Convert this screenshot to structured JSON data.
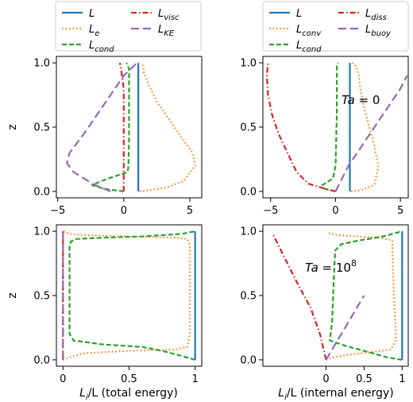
{
  "legends": [
    {
      "entries": [
        {
          "base": "L",
          "sub": "",
          "color": "#1f77b4",
          "dash": "solid"
        },
        {
          "base": "L",
          "sub": "e",
          "color": "#ff7f0e",
          "dash": "dotted"
        },
        {
          "base": "L",
          "sub": "cond",
          "color": "#2ca02c",
          "dash": "dashed"
        },
        {
          "base": "L",
          "sub": "visc",
          "color": "#d62728",
          "dash": "dashdot"
        },
        {
          "base": "L",
          "sub": "KE",
          "color": "#9467bd",
          "dash": "longdash"
        }
      ]
    },
    {
      "entries": [
        {
          "base": "L",
          "sub": "",
          "color": "#1f77b4",
          "dash": "solid"
        },
        {
          "base": "L",
          "sub": "conv",
          "color": "#ff7f0e",
          "dash": "dotted"
        },
        {
          "base": "L",
          "sub": "cond",
          "color": "#2ca02c",
          "dash": "dashed"
        },
        {
          "base": "L",
          "sub": "diss",
          "color": "#d62728",
          "dash": "dashdot"
        },
        {
          "base": "L",
          "sub": "buoy",
          "color": "#9467bd",
          "dash": "longdash"
        }
      ]
    }
  ],
  "ylabel": "z",
  "xlabel_left": {
    "base": "L",
    "sub": "i",
    "rest": "/L (total energy)"
  },
  "xlabel_right": {
    "base": "L",
    "sub": "i",
    "rest": "/L (internal energy)"
  },
  "annotation_top": {
    "prefix": "Ta",
    "eq": " = ",
    "value": "0"
  },
  "annotation_bottom": {
    "prefix": "Ta",
    "eq": " = ",
    "value": "10",
    "sup": "8"
  },
  "colors": {
    "L": "#1f77b4",
    "e": "#ff7f0e",
    "cond": "#2ca02c",
    "visc": "#d62728",
    "ke": "#9467bd"
  },
  "chart_data": [
    {
      "type": "line",
      "panel": "top-left",
      "xlim": [
        -5.1,
        5.9
      ],
      "ylim": [
        -0.05,
        1.05
      ],
      "xticks": [
        -5,
        0,
        5
      ],
      "yticks": [
        0.0,
        0.5,
        1.0
      ],
      "series": [
        {
          "key": "L",
          "x": [
            1.1,
            1.1,
            1.1,
            1.1,
            1.1,
            1.1
          ],
          "y": [
            0.0,
            0.2,
            0.4,
            0.6,
            0.8,
            1.0
          ]
        },
        {
          "key": "e",
          "x": [
            1.2,
            2.0,
            3.2,
            4.5,
            5.4,
            5.2,
            4.5,
            3.5,
            2.5,
            1.8,
            1.5,
            1.5,
            1.3
          ],
          "y": [
            0.0,
            0.01,
            0.03,
            0.08,
            0.2,
            0.3,
            0.4,
            0.55,
            0.7,
            0.85,
            0.93,
            0.97,
            1.0
          ]
        },
        {
          "key": "cond",
          "x": [
            0.0,
            -1.5,
            -2.4,
            -1.2,
            0.3,
            0.35,
            0.4,
            0.4,
            0.4,
            0.4,
            0.3,
            0.2
          ],
          "y": [
            0.0,
            0.02,
            0.05,
            0.1,
            0.15,
            0.2,
            0.4,
            0.6,
            0.8,
            0.95,
            0.98,
            1.0
          ]
        },
        {
          "key": "visc",
          "x": [
            0.0,
            0.0,
            0.0,
            0.0,
            0.0,
            -0.2,
            -0.3
          ],
          "y": [
            0.0,
            0.2,
            0.4,
            0.6,
            0.8,
            0.95,
            1.0
          ]
        },
        {
          "key": "ke",
          "x": [
            -1.0,
            -2.2,
            -3.8,
            -4.3,
            -4.1,
            -3.0,
            -2.0,
            -1.0,
            0.0,
            1.0
          ],
          "y": [
            0.0,
            0.05,
            0.15,
            0.22,
            0.3,
            0.45,
            0.6,
            0.75,
            0.9,
            1.0
          ]
        }
      ]
    },
    {
      "type": "line",
      "panel": "top-right",
      "xlim": [
        -5.6,
        5.6
      ],
      "ylim": [
        -0.05,
        1.05
      ],
      "xticks": [
        -5,
        0,
        5
      ],
      "yticks": [
        0.0,
        0.5,
        1.0
      ],
      "series": [
        {
          "key": "L",
          "x": [
            1.1,
            1.1,
            1.1,
            1.1,
            1.1,
            1.1
          ],
          "y": [
            0.0,
            0.2,
            0.4,
            0.6,
            0.8,
            1.0
          ]
        },
        {
          "key": "e",
          "x": [
            1.2,
            2.0,
            3.0,
            3.3,
            3.0,
            2.6,
            2.2,
            1.9,
            1.8,
            1.6,
            1.3
          ],
          "y": [
            0.0,
            0.01,
            0.05,
            0.2,
            0.35,
            0.5,
            0.65,
            0.8,
            0.9,
            0.97,
            1.0
          ]
        },
        {
          "key": "cond",
          "x": [
            0.0,
            -0.8,
            -1.0,
            -0.2,
            0.0,
            0.05,
            0.1,
            0.1,
            0.1,
            0.1,
            0.2
          ],
          "y": [
            0.0,
            0.02,
            0.05,
            0.1,
            0.2,
            0.4,
            0.6,
            0.8,
            0.9,
            0.97,
            1.0
          ]
        },
        {
          "key": "visc",
          "x": [
            0.0,
            -0.8,
            -2.1,
            -3.0,
            -3.7,
            -4.4,
            -4.9,
            -5.2,
            -5.3,
            -5.2
          ],
          "y": [
            0.0,
            0.02,
            0.06,
            0.15,
            0.3,
            0.45,
            0.6,
            0.75,
            0.9,
            1.0
          ]
        },
        {
          "key": "ke",
          "x": [
            0.0,
            1.0,
            2.0,
            3.0,
            4.0,
            5.0,
            5.5
          ],
          "y": [
            0.0,
            0.2,
            0.35,
            0.5,
            0.65,
            0.8,
            0.9
          ]
        }
      ]
    },
    {
      "type": "line",
      "panel": "bottom-left",
      "xlim": [
        -0.05,
        1.05
      ],
      "ylim": [
        -0.05,
        1.05
      ],
      "xticks": [
        0.0,
        0.5,
        1.0
      ],
      "yticks": [
        0.0,
        0.5,
        1.0
      ],
      "series": [
        {
          "key": "L",
          "x": [
            1.0,
            1.0,
            1.0,
            1.0,
            1.0,
            1.0
          ],
          "y": [
            0.0,
            0.2,
            0.4,
            0.6,
            0.8,
            1.0
          ]
        },
        {
          "key": "e",
          "x": [
            0.0,
            0.05,
            0.15,
            0.5,
            0.85,
            0.94,
            0.96,
            0.96,
            0.96,
            0.96,
            0.94,
            0.85,
            0.5,
            0.15,
            0.05,
            0.0
          ],
          "y": [
            0.0,
            0.02,
            0.05,
            0.07,
            0.08,
            0.1,
            0.2,
            0.5,
            0.8,
            0.9,
            0.94,
            0.95,
            0.96,
            0.97,
            0.98,
            1.0
          ]
        },
        {
          "key": "cond",
          "x": [
            1.0,
            0.9,
            0.75,
            0.6,
            0.3,
            0.08,
            0.05,
            0.05,
            0.05,
            0.05,
            0.06,
            0.1,
            0.3,
            0.6,
            0.9,
            1.0
          ],
          "y": [
            0.0,
            0.03,
            0.07,
            0.1,
            0.12,
            0.15,
            0.2,
            0.5,
            0.8,
            0.88,
            0.92,
            0.94,
            0.95,
            0.96,
            0.98,
            1.0
          ]
        },
        {
          "key": "visc",
          "x": [
            0.0,
            0.0,
            0.0,
            0.0,
            0.0,
            0.0
          ],
          "y": [
            0.0,
            0.2,
            0.4,
            0.6,
            0.8,
            1.0
          ]
        },
        {
          "key": "ke",
          "x": [
            0.0,
            0.0,
            0.0,
            0.0,
            0.0,
            0.0
          ],
          "y": [
            0.0,
            0.2,
            0.4,
            0.6,
            0.8,
            1.0
          ]
        }
      ]
    },
    {
      "type": "line",
      "panel": "bottom-right",
      "xlim": [
        -0.83,
        1.08
      ],
      "ylim": [
        -0.05,
        1.05
      ],
      "xticks": [
        0.0,
        0.5,
        1.0
      ],
      "yticks": [
        0.0,
        0.5,
        1.0
      ],
      "series": [
        {
          "key": "L",
          "x": [
            1.0,
            1.0,
            1.0,
            1.0,
            1.0,
            1.0
          ],
          "y": [
            0.0,
            0.2,
            0.4,
            0.6,
            0.8,
            1.0
          ]
        },
        {
          "key": "e",
          "x": [
            0.0,
            0.1,
            0.3,
            0.6,
            0.85,
            0.92,
            0.9,
            0.88,
            0.87,
            0.7,
            0.4,
            0.15,
            0.05,
            0.02
          ],
          "y": [
            0.0,
            0.02,
            0.04,
            0.06,
            0.08,
            0.15,
            0.4,
            0.7,
            0.93,
            0.95,
            0.96,
            0.97,
            0.98,
            1.0
          ]
        },
        {
          "key": "cond",
          "x": [
            1.0,
            0.8,
            0.5,
            0.25,
            0.05,
            0.08,
            0.1,
            0.12,
            0.2,
            0.45,
            0.75,
            1.0
          ],
          "y": [
            0.0,
            0.02,
            0.07,
            0.11,
            0.15,
            0.3,
            0.6,
            0.85,
            0.9,
            0.93,
            0.96,
            1.0
          ]
        },
        {
          "key": "visc",
          "x": [
            0.0,
            -0.02,
            -0.08,
            -0.2,
            -0.38,
            -0.55,
            -0.7
          ],
          "y": [
            0.0,
            0.05,
            0.2,
            0.4,
            0.6,
            0.8,
            0.98
          ]
        },
        {
          "key": "ke",
          "x": [
            0.0,
            0.1,
            0.2,
            0.3,
            0.4,
            0.5
          ],
          "y": [
            0.0,
            0.1,
            0.2,
            0.3,
            0.4,
            0.5
          ]
        }
      ]
    }
  ]
}
